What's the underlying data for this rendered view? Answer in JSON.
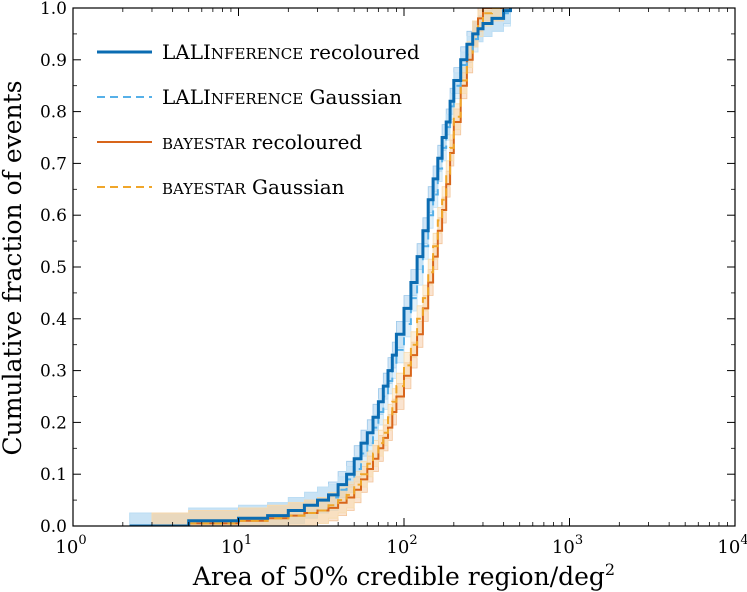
{
  "chart_data": {
    "type": "line",
    "title": "",
    "xlabel": "Area of 50% credible region/deg",
    "xlabel_superscript": "2",
    "ylabel": "Cumulative fraction of events",
    "xscale": "log",
    "xlim": [
      1,
      10000
    ],
    "ylim": [
      0,
      1
    ],
    "x_ticks": [
      {
        "value": 1,
        "base": "10",
        "exp": "0"
      },
      {
        "value": 10,
        "base": "10",
        "exp": "1"
      },
      {
        "value": 100,
        "base": "10",
        "exp": "2"
      },
      {
        "value": 1000,
        "base": "10",
        "exp": "3"
      },
      {
        "value": 10000,
        "base": "10",
        "exp": "4"
      }
    ],
    "y_ticks": [
      {
        "value": 0.0,
        "label": "0.0"
      },
      {
        "value": 0.1,
        "label": "0.1"
      },
      {
        "value": 0.2,
        "label": "0.2"
      },
      {
        "value": 0.3,
        "label": "0.3"
      },
      {
        "value": 0.4,
        "label": "0.4"
      },
      {
        "value": 0.5,
        "label": "0.5"
      },
      {
        "value": 0.6,
        "label": "0.6"
      },
      {
        "value": 0.7,
        "label": "0.7"
      },
      {
        "value": 0.8,
        "label": "0.8"
      },
      {
        "value": 0.9,
        "label": "0.9"
      },
      {
        "value": 1.0,
        "label": "1.0"
      }
    ],
    "legend_position": "top-left",
    "series": [
      {
        "name": "LALInference recoloured",
        "color": "#0b6cb2",
        "dash": "solid",
        "band_color": "#9cc8ea",
        "x": [
          2.2,
          5,
          10,
          15,
          20,
          25,
          30,
          35,
          40,
          45,
          50,
          55,
          60,
          65,
          70,
          75,
          80,
          85,
          90,
          100,
          110,
          120,
          130,
          140,
          150,
          160,
          170,
          180,
          190,
          200,
          220,
          240,
          260,
          280,
          300,
          340,
          400,
          440
        ],
        "y": [
          0.0,
          0.01,
          0.015,
          0.02,
          0.03,
          0.04,
          0.05,
          0.06,
          0.08,
          0.1,
          0.13,
          0.16,
          0.18,
          0.21,
          0.24,
          0.27,
          0.3,
          0.33,
          0.37,
          0.42,
          0.47,
          0.52,
          0.57,
          0.63,
          0.67,
          0.71,
          0.75,
          0.78,
          0.82,
          0.86,
          0.9,
          0.93,
          0.95,
          0.96,
          0.97,
          0.98,
          0.995,
          1.0
        ]
      },
      {
        "name": "LALInference Gaussian",
        "color": "#56b0e8",
        "dash": "dashed",
        "band_color": "#bfe0f5",
        "x": [
          2.2,
          5,
          10,
          15,
          20,
          25,
          30,
          35,
          40,
          45,
          50,
          55,
          60,
          65,
          70,
          75,
          80,
          85,
          90,
          100,
          110,
          120,
          130,
          140,
          150,
          160,
          170,
          180,
          190,
          200,
          220,
          240,
          260,
          280,
          300,
          340,
          400,
          440
        ],
        "y": [
          0.0,
          0.01,
          0.015,
          0.02,
          0.03,
          0.04,
          0.05,
          0.055,
          0.07,
          0.09,
          0.11,
          0.14,
          0.16,
          0.19,
          0.22,
          0.25,
          0.28,
          0.31,
          0.34,
          0.39,
          0.44,
          0.49,
          0.54,
          0.6,
          0.64,
          0.69,
          0.73,
          0.77,
          0.81,
          0.85,
          0.89,
          0.92,
          0.94,
          0.96,
          0.97,
          0.98,
          0.99,
          1.0
        ]
      },
      {
        "name": "BAYESTAR recoloured",
        "color": "#d8651a",
        "dash": "solid",
        "band_color": "#f3c49a",
        "x": [
          3,
          5,
          10,
          15,
          20,
          25,
          30,
          35,
          40,
          45,
          50,
          55,
          60,
          65,
          70,
          75,
          80,
          85,
          90,
          100,
          110,
          120,
          130,
          140,
          150,
          160,
          170,
          180,
          190,
          200,
          220,
          240,
          260,
          280,
          300,
          340,
          400
        ],
        "y": [
          0.0,
          0.005,
          0.01,
          0.015,
          0.02,
          0.025,
          0.03,
          0.035,
          0.045,
          0.055,
          0.07,
          0.09,
          0.11,
          0.13,
          0.15,
          0.17,
          0.19,
          0.22,
          0.25,
          0.29,
          0.33,
          0.37,
          0.42,
          0.47,
          0.52,
          0.57,
          0.61,
          0.66,
          0.72,
          0.78,
          0.85,
          0.9,
          0.95,
          0.98,
          1.0,
          1.0,
          1.0
        ]
      },
      {
        "name": "BAYESTAR Gaussian",
        "color": "#f0a62a",
        "dash": "dashed",
        "band_color": "#f8dcae",
        "x": [
          3,
          5,
          10,
          15,
          20,
          25,
          30,
          35,
          40,
          45,
          50,
          55,
          60,
          65,
          70,
          75,
          80,
          85,
          90,
          100,
          110,
          120,
          130,
          140,
          150,
          160,
          170,
          180,
          190,
          200,
          220,
          240,
          260,
          280,
          300,
          340,
          400
        ],
        "y": [
          0.0,
          0.005,
          0.01,
          0.015,
          0.02,
          0.025,
          0.03,
          0.04,
          0.05,
          0.06,
          0.08,
          0.1,
          0.12,
          0.14,
          0.16,
          0.18,
          0.21,
          0.24,
          0.27,
          0.31,
          0.35,
          0.4,
          0.44,
          0.49,
          0.54,
          0.59,
          0.63,
          0.68,
          0.73,
          0.79,
          0.86,
          0.91,
          0.95,
          0.97,
          0.99,
          1.0,
          1.0
        ]
      }
    ],
    "legend": [
      {
        "series": 0,
        "main": "LALI",
        "small": "NFERENCE",
        "rest": " recoloured"
      },
      {
        "series": 1,
        "main": "LALI",
        "small": "NFERENCE",
        "rest": " Gaussian"
      },
      {
        "series": 2,
        "main": "",
        "small": "BAYESTAR",
        "rest": " recoloured"
      },
      {
        "series": 3,
        "main": "",
        "small": "BAYESTAR",
        "rest": " Gaussian"
      }
    ]
  }
}
